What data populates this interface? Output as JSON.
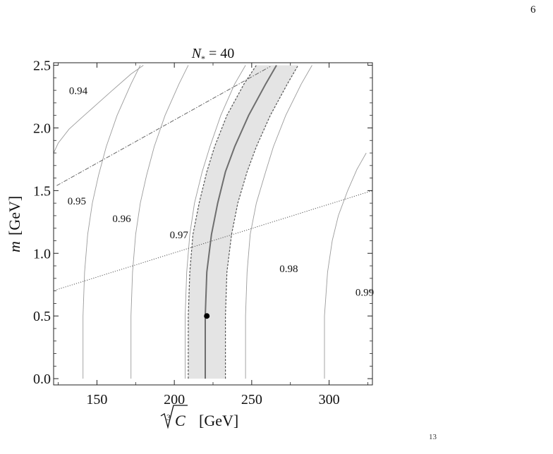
{
  "page_number": "6",
  "footer_mark": "13",
  "chart_data": {
    "type": "line",
    "title": "N* = 40",
    "title_main": "N",
    "title_sub": "*",
    "title_rest": " = 40",
    "xlabel": "∛C  [GeV]",
    "xlabel_root_index": "3",
    "xlabel_symbol": "C",
    "xlabel_unit": "[GeV]",
    "ylabel": "m  [GeV]",
    "ylabel_symbol": "m",
    "ylabel_unit": "[GeV]",
    "xlim": [
      122,
      328
    ],
    "ylim": [
      -0.05,
      2.52
    ],
    "x_ticks": [
      150,
      200,
      250,
      300
    ],
    "y_ticks": [
      0.0,
      0.5,
      1.0,
      1.5,
      2.0,
      2.5
    ],
    "y_tick_labels": [
      "0.0",
      "0.5",
      "1.0",
      "1.5",
      "2.0",
      "2.5"
    ],
    "grid": false,
    "contours": [
      {
        "label": "0.94",
        "label_at": [
          132,
          2.27
        ],
        "points": [
          [
            122,
            1.8
          ],
          [
            125,
            1.88
          ],
          [
            132,
            1.99
          ],
          [
            140,
            2.08
          ],
          [
            150,
            2.19
          ],
          [
            160,
            2.3
          ],
          [
            172,
            2.43
          ],
          [
            180,
            2.5
          ]
        ]
      },
      {
        "label": "0.95",
        "label_at": [
          131,
          1.39
        ],
        "points": [
          [
            141,
            0
          ],
          [
            141,
            0.5
          ],
          [
            142,
            0.85
          ],
          [
            144,
            1.15
          ],
          [
            147,
            1.4
          ],
          [
            151,
            1.62
          ],
          [
            156,
            1.85
          ],
          [
            163,
            2.1
          ],
          [
            172,
            2.35
          ],
          [
            178,
            2.5
          ]
        ]
      },
      {
        "label": "0.96",
        "label_at": [
          160,
          1.25
        ],
        "points": [
          [
            172,
            0
          ],
          [
            172,
            0.5
          ],
          [
            173,
            0.85
          ],
          [
            175,
            1.15
          ],
          [
            178,
            1.4
          ],
          [
            182,
            1.62
          ],
          [
            187,
            1.85
          ],
          [
            194,
            2.1
          ],
          [
            203,
            2.35
          ],
          [
            209,
            2.5
          ]
        ]
      },
      {
        "label": "0.97",
        "label_at": [
          197,
          1.12
        ],
        "points": [
          [
            207,
            0
          ],
          [
            207,
            0.5
          ],
          [
            208,
            0.85
          ],
          [
            210,
            1.15
          ],
          [
            213,
            1.4
          ],
          [
            218,
            1.65
          ],
          [
            223,
            1.85
          ],
          [
            230,
            2.1
          ],
          [
            239,
            2.35
          ],
          [
            246,
            2.5
          ]
        ]
      },
      {
        "label": "0.98",
        "label_at": [
          268,
          0.85
        ],
        "points": [
          [
            246,
            0
          ],
          [
            246,
            0.5
          ],
          [
            247,
            0.85
          ],
          [
            249,
            1.15
          ],
          [
            253,
            1.4
          ],
          [
            259,
            1.65
          ],
          [
            264,
            1.85
          ],
          [
            272,
            2.1
          ],
          [
            282,
            2.35
          ],
          [
            289,
            2.5
          ]
        ]
      },
      {
        "label": "0.99",
        "label_at": [
          317,
          0.66
        ],
        "points": [
          [
            297,
            0
          ],
          [
            297,
            0.5
          ],
          [
            299,
            0.85
          ],
          [
            302,
            1.1
          ],
          [
            306,
            1.3
          ],
          [
            312,
            1.5
          ],
          [
            318,
            1.67
          ],
          [
            324,
            1.8
          ]
        ]
      }
    ],
    "central_curve": [
      [
        220,
        0
      ],
      [
        220,
        0.5
      ],
      [
        221,
        0.85
      ],
      [
        224,
        1.15
      ],
      [
        228,
        1.4
      ],
      [
        233,
        1.65
      ],
      [
        239,
        1.85
      ],
      [
        248,
        2.1
      ],
      [
        259,
        2.35
      ],
      [
        266,
        2.5
      ]
    ],
    "band_lower": [
      [
        209,
        0
      ],
      [
        209,
        0.5
      ],
      [
        210,
        0.85
      ],
      [
        212,
        1.15
      ],
      [
        216,
        1.4
      ],
      [
        221,
        1.65
      ],
      [
        226,
        1.85
      ],
      [
        234,
        2.1
      ],
      [
        245,
        2.35
      ],
      [
        253,
        2.5
      ]
    ],
    "band_upper": [
      [
        233,
        0
      ],
      [
        233,
        0.5
      ],
      [
        234,
        0.85
      ],
      [
        237,
        1.15
      ],
      [
        241,
        1.4
      ],
      [
        247,
        1.65
      ],
      [
        253,
        1.85
      ],
      [
        262,
        2.1
      ],
      [
        273,
        2.35
      ],
      [
        280,
        2.5
      ]
    ],
    "dotdash_line": [
      [
        124,
        1.54
      ],
      [
        262,
        2.49
      ]
    ],
    "dotted_line": [
      [
        124,
        0.71
      ],
      [
        328,
        1.5
      ]
    ],
    "marker_point": [
      221,
      0.5
    ],
    "colors": {
      "contour": "#9b9b9b",
      "band_fill": "#e4e4e4",
      "band_edge": "#555555",
      "central": "#6e6e6e",
      "dotdash": "#666666",
      "dotted": "#555555",
      "point": "#000000"
    }
  }
}
